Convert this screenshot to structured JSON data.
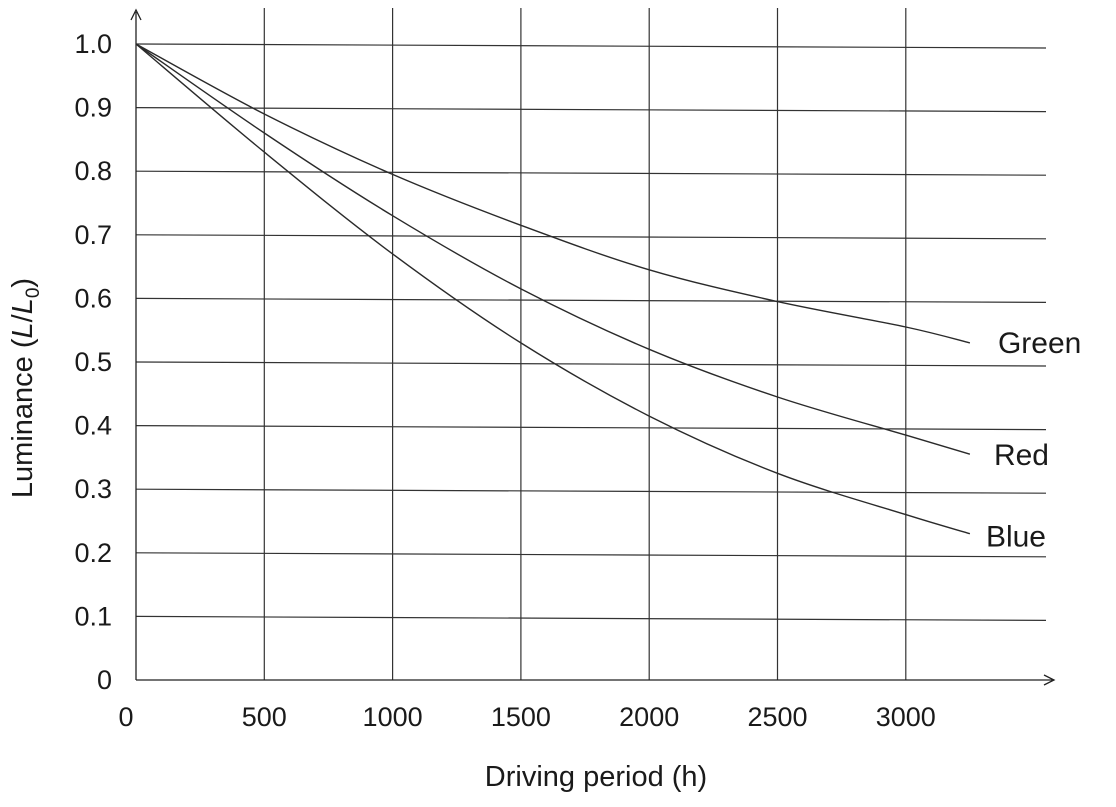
{
  "chart_data": {
    "type": "line",
    "xlabel": "Driving period (h)",
    "ylabel": {
      "prefix": "Luminance (",
      "L": "L",
      "slash": "/",
      "L0": "L",
      "sub": "0",
      "suffix": ")"
    },
    "xlim": [
      0,
      3500
    ],
    "ylim": [
      0,
      1.0
    ],
    "x_ticks": [
      0,
      500,
      1000,
      1500,
      2000,
      2500,
      3000
    ],
    "x_tick_labels": [
      "0",
      "500",
      "1000",
      "1500",
      "2000",
      "2500",
      "3000"
    ],
    "y_ticks": [
      0,
      0.1,
      0.2,
      0.3,
      0.4,
      0.5,
      0.6,
      0.7,
      0.8,
      0.9,
      1.0
    ],
    "y_tick_labels": [
      "0",
      "0.1",
      "0.2",
      "0.3",
      "0.4",
      "0.5",
      "0.6",
      "0.7",
      "0.8",
      "0.9",
      "1.0"
    ],
    "grid": true,
    "series": [
      {
        "name": "Green",
        "x": [
          0,
          500,
          1000,
          1500,
          2000,
          2500,
          3000,
          3250
        ],
        "y": [
          1.0,
          0.89,
          0.795,
          0.715,
          0.645,
          0.595,
          0.555,
          0.53
        ]
      },
      {
        "name": "Red",
        "x": [
          0,
          500,
          1000,
          1500,
          2000,
          2500,
          3000,
          3250
        ],
        "y": [
          1.0,
          0.86,
          0.73,
          0.615,
          0.52,
          0.445,
          0.385,
          0.355
        ]
      },
      {
        "name": "Blue",
        "x": [
          0,
          500,
          1000,
          1500,
          2000,
          2500,
          3000,
          3250
        ],
        "y": [
          1.0,
          0.83,
          0.67,
          0.53,
          0.415,
          0.325,
          0.26,
          0.23
        ]
      }
    ]
  }
}
